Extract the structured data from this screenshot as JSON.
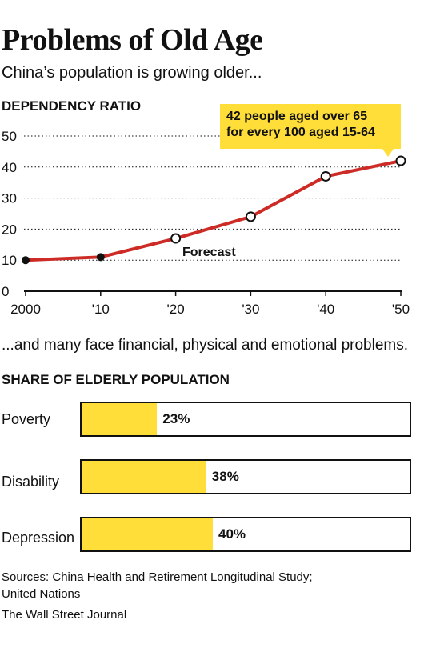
{
  "header": {
    "title": "Problems of Old Age",
    "subtitle": "China’s population is growing older..."
  },
  "callout": {
    "line1": "42 people aged over 65",
    "line2": "for every 100 aged 15-64"
  },
  "caption": "...and many face financial, physical and emotional problems.",
  "sources": {
    "line1": "Sources: China Health and Retirement Longitudinal Study;",
    "line2": "United Nations",
    "line3": "The Wall Street Journal"
  },
  "colors": {
    "line": "#cc2b26",
    "accent": "#ffde3a",
    "ink": "#111111"
  },
  "chart_data": [
    {
      "type": "line",
      "title": "DEPENDENCY RATIO",
      "x": [
        2000,
        2010,
        2020,
        2030,
        2040,
        2050
      ],
      "x_tick_labels": [
        "2000",
        "'10",
        "'20",
        "'30",
        "'40",
        "'50"
      ],
      "values": [
        10,
        11,
        17,
        24,
        37,
        42
      ],
      "point_styles": [
        "actual",
        "actual",
        "forecast",
        "forecast",
        "forecast",
        "forecast"
      ],
      "annotation": "Forecast",
      "ylim": [
        0,
        50
      ],
      "y_ticks": [
        0,
        10,
        20,
        30,
        40,
        50
      ],
      "grid": true
    },
    {
      "type": "bar",
      "title": "SHARE OF ELDERLY POPULATION",
      "categories": [
        "Poverty",
        "Disability",
        "Depression"
      ],
      "values": [
        23,
        38,
        40
      ],
      "value_labels": [
        "23%",
        "38%",
        "40%"
      ],
      "xlim": [
        0,
        100
      ]
    }
  ]
}
